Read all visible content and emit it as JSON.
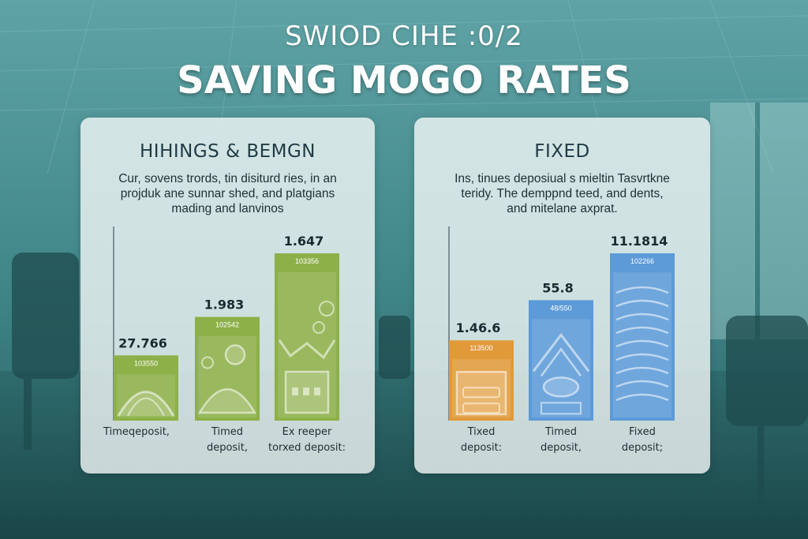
{
  "header": {
    "pretitle": "SWIOD CIHE :0/2",
    "title": "SAVING MOGO RATES"
  },
  "colors": {
    "green": "#8db048",
    "orange": "#e19a3a",
    "blue": "#5c9ad8",
    "panel": "#f2f7f6"
  },
  "panels": [
    {
      "title": "HIHINGS & BEMGN",
      "desc": [
        "Cur, sovens trords, tin disiturd ries, in an",
        "projduk ane sunnar shed, and platgians",
        "mading and lanvinos"
      ]
    },
    {
      "title": "FIXED",
      "desc": [
        "Ins, tinues deposiual s mieltin Tasvrtkne",
        "teridy. The demppnd teed, and dents,",
        "and mitelane axprat."
      ]
    }
  ],
  "chart_data": [
    {
      "type": "bar",
      "ylim": [
        0,
        1.1
      ],
      "categories": [
        "Timedeposit,",
        "Timed deposit,",
        "Ex reeper torxed deposit:"
      ],
      "category_lines": [
        [
          "Timeqeposit,"
        ],
        [
          "Timed",
          "deposit,"
        ],
        [
          "Ex reeper",
          "torxed deposit:"
        ]
      ],
      "values": [
        0.39,
        0.62,
        1.0
      ],
      "data_labels": [
        "27.766",
        "1.983",
        "1.647"
      ],
      "sub_labels": [
        "103550",
        "102542",
        "103356"
      ],
      "bar_colors": [
        "#8db048",
        "#8db048",
        "#8db048"
      ],
      "icons": [
        "arch-icon",
        "sun-dome-icon",
        "building-icon"
      ]
    },
    {
      "type": "bar",
      "ylim": [
        0,
        1.1
      ],
      "categories": [
        "Tixed deposit:",
        "Timed deposit,",
        "Fixed deposit;"
      ],
      "category_lines": [
        [
          "Tixed",
          "deposit:"
        ],
        [
          "Timed",
          "deposit,"
        ],
        [
          "Fixed",
          "deposit;"
        ]
      ],
      "values": [
        0.48,
        0.72,
        1.0
      ],
      "data_labels": [
        "1.46.6",
        "55.8",
        "11.1814"
      ],
      "sub_labels": [
        "113500",
        "48/550",
        "102266"
      ],
      "bar_colors": [
        "#e19a3a",
        "#5c9ad8",
        "#5c9ad8"
      ],
      "icons": [
        "cabinet-icon",
        "cloud-house-icon",
        "wave-pattern-icon"
      ]
    }
  ]
}
